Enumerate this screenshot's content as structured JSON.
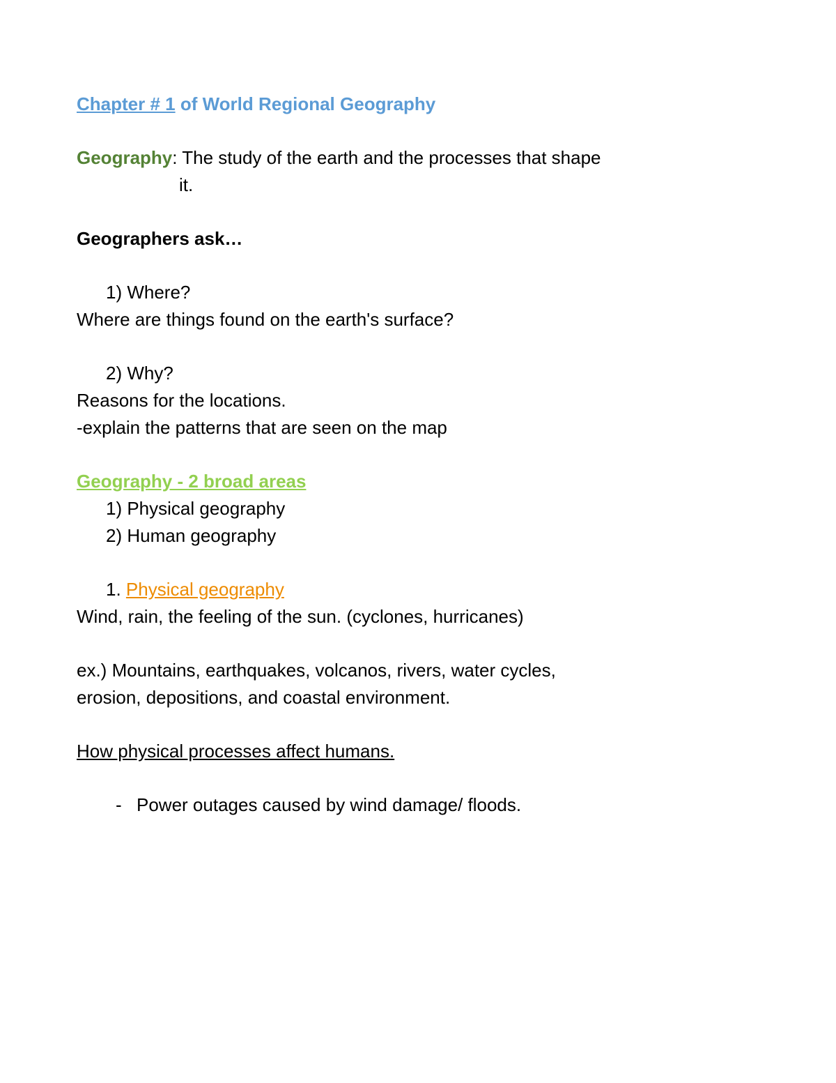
{
  "colors": {
    "title_blue": "#5b9bd5",
    "term_green": "#548235",
    "section_green": "#92d050",
    "subheading_orange": "#ed8b00",
    "text_black": "#000000",
    "background": "#ffffff"
  },
  "typography": {
    "font_family": "Arial",
    "font_size_pt": 20,
    "line_height": 1.5
  },
  "title": {
    "link_text": "Chapter # 1",
    "rest_text": " of World Regional Geography"
  },
  "definition": {
    "term": "Geography",
    "separator": ": ",
    "text_line1": "The study of the earth and the processes that shape",
    "text_line2": "it."
  },
  "ask_heading": "Geographers ask…",
  "questions": [
    {
      "number": "1) Where?",
      "detail_lines": [
        "Where are things found on the earth's surface?"
      ]
    },
    {
      "number": "2) Why?",
      "detail_lines": [
        "Reasons for the locations.",
        "-explain the patterns that are seen on the map"
      ]
    }
  ],
  "broad_areas": {
    "heading": "Geography - 2 broad areas",
    "items": [
      "1) Physical geography",
      "2) Human geography"
    ]
  },
  "physical": {
    "number_prefix": "1. ",
    "heading": "Physical geography",
    "desc": "Wind, rain,  the feeling of the sun. (cyclones, hurricanes)",
    "example_lines": [
      "ex.) Mountains, earthquakes, volcanos, rivers, water cycles,",
      "erosion, depositions, and coastal environment."
    ]
  },
  "affect": {
    "heading": "How physical processes affect humans.",
    "bullets": [
      "Power outages caused by wind damage/ floods."
    ]
  }
}
